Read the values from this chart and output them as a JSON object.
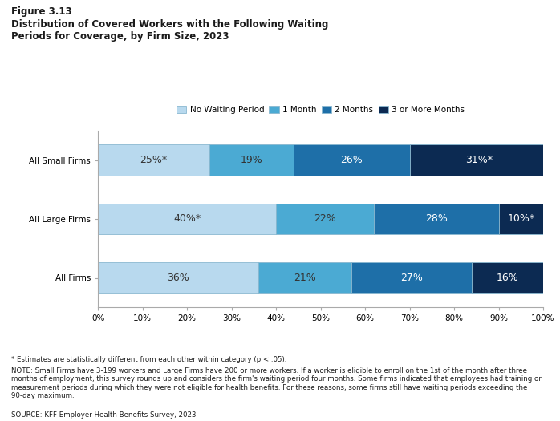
{
  "title_line1": "Figure 3.13",
  "title_line2": "Distribution of Covered Workers with the Following Waiting\nPeriods for Coverage, by Firm Size, 2023",
  "categories": [
    "All Small Firms",
    "All Large Firms",
    "All Firms"
  ],
  "series": {
    "No Waiting Period": [
      25,
      40,
      36
    ],
    "1 Month": [
      19,
      22,
      21
    ],
    "2 Months": [
      26,
      28,
      27
    ],
    "3 or More Months": [
      31,
      10,
      16
    ]
  },
  "labels": {
    "No Waiting Period": [
      "25%*",
      "40%*",
      "36%"
    ],
    "1 Month": [
      "19%",
      "22%",
      "21%"
    ],
    "2 Months": [
      "26%",
      "28%",
      "27%"
    ],
    "3 or More Months": [
      "31%*",
      "10%*",
      "16%"
    ]
  },
  "colors": {
    "No Waiting Period": "#b8d9ee",
    "1 Month": "#4baad3",
    "2 Months": "#1e6fa8",
    "3 or More Months": "#0c2a52"
  },
  "legend_labels": [
    "No Waiting Period",
    "1 Month",
    "2 Months",
    "3 or More Months"
  ],
  "xlim": [
    0,
    100
  ],
  "bar_height": 0.52,
  "note_line1": "* Estimates are statistically different from each other within category (p < .05).",
  "note_line2": "NOTE: Small Firms have 3-199 workers and Large Firms have 200 or more workers. If a worker is eligible to enroll on the 1st of the month after three\nmonths of employment, this survey rounds up and considers the firm's waiting period four months. Some firms indicated that employees had training or\nmeasurement periods during which they were not eligible for health benefits. For these reasons, some firms still have waiting periods exceeding the\n90-day maximum.",
  "source": "SOURCE: KFF Employer Health Benefits Survey, 2023",
  "background_color": "#ffffff",
  "label_fontsize": 9,
  "note_fontsize": 6.2,
  "title1_fontsize": 8.5,
  "title2_fontsize": 8.5,
  "legend_fontsize": 7.5,
  "tick_fontsize": 7.5
}
